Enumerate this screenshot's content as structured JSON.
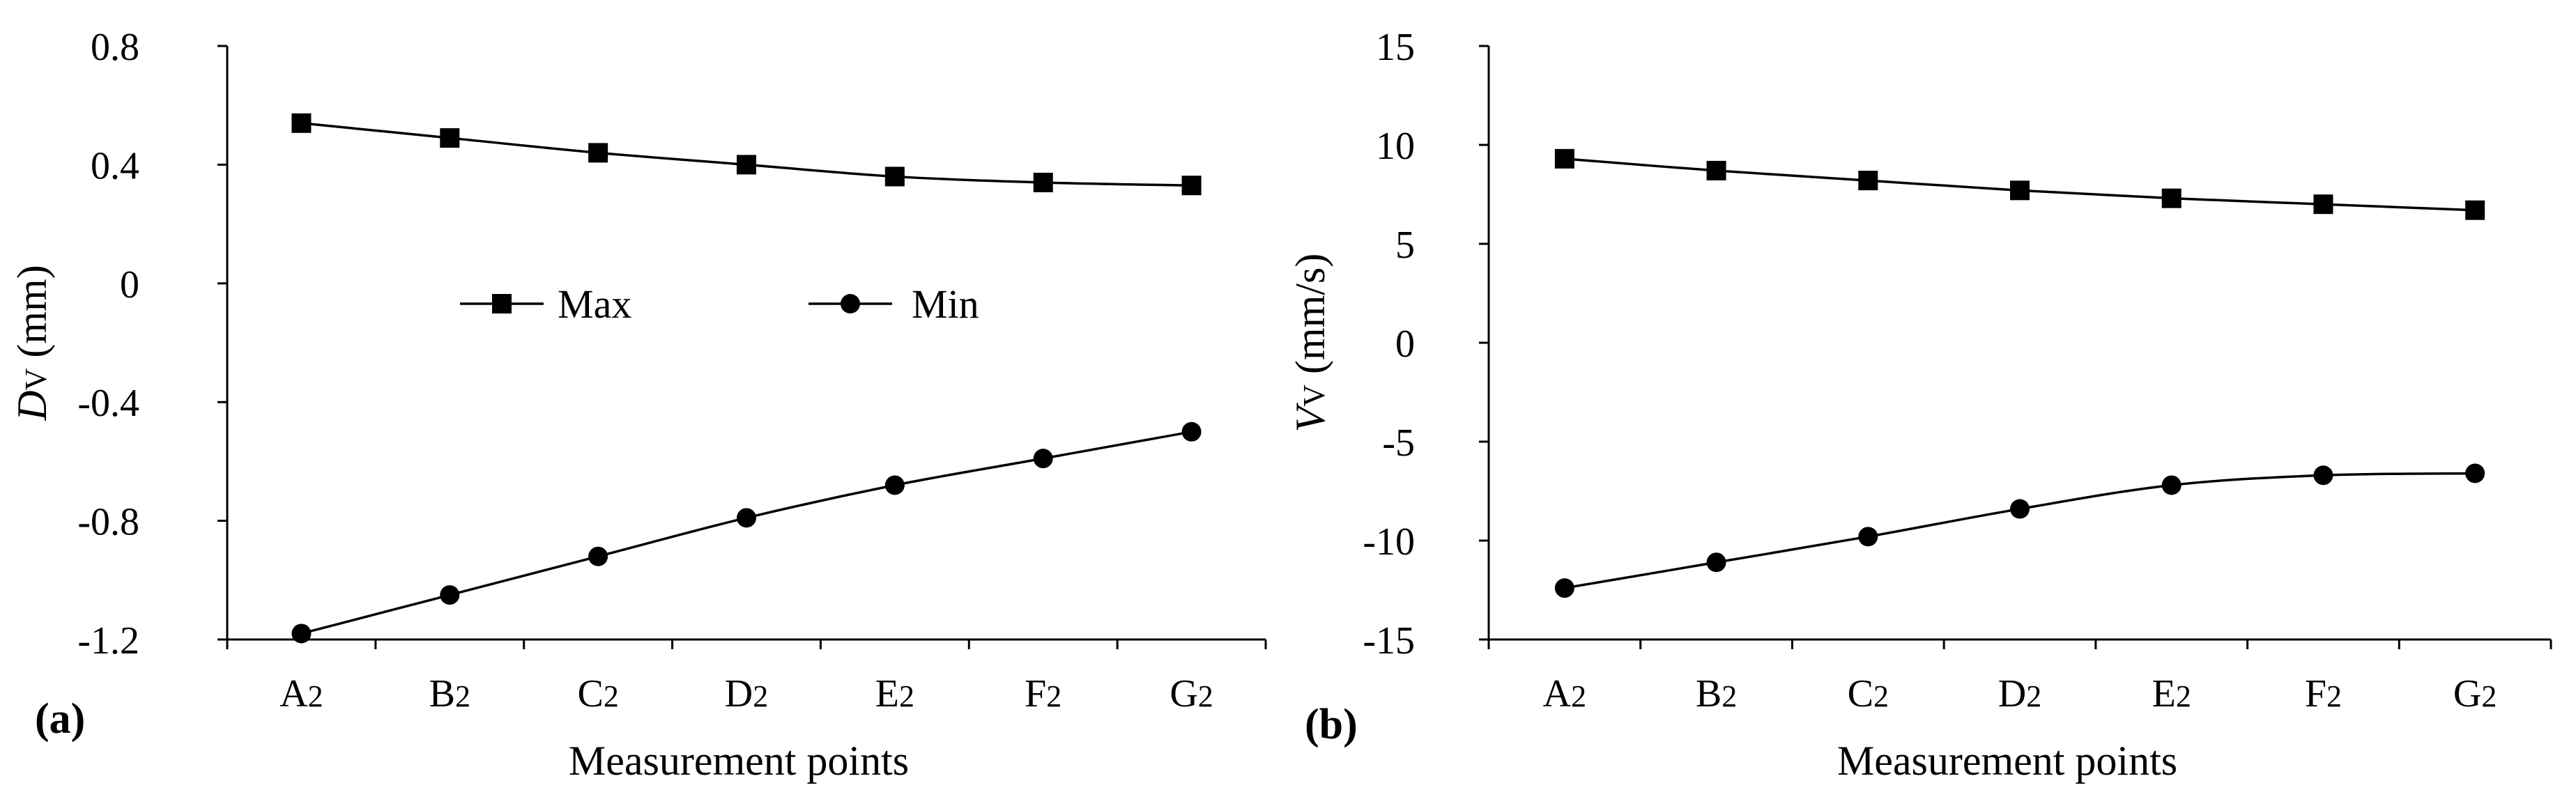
{
  "chart_data": [
    {
      "type": "line",
      "panel_label": "(a)",
      "categories": [
        "A",
        "B",
        "C",
        "D",
        "E",
        "F",
        "G"
      ],
      "category_subscript": "2",
      "xlabel": "Measurement points",
      "ylabel_symbol": "D",
      "ylabel_subscript": "V",
      "ylabel_unit": " (mm)",
      "ylim": [
        -1.2,
        0.8
      ],
      "yticks": [
        0.8,
        0.4,
        0,
        -0.4,
        -0.8,
        -1.2
      ],
      "ytick_labels": [
        "0.8",
        "0.4",
        "0",
        "-0.4",
        "-0.8",
        "-1.2"
      ],
      "legend": "inside-center",
      "series": [
        {
          "name": "Max",
          "marker": "square",
          "values": [
            0.54,
            0.49,
            0.44,
            0.4,
            0.36,
            0.34,
            0.33
          ]
        },
        {
          "name": "Min",
          "marker": "circle",
          "values": [
            -1.18,
            -1.05,
            -0.92,
            -0.79,
            -0.68,
            -0.59,
            -0.5
          ]
        }
      ]
    },
    {
      "type": "line",
      "panel_label": "(b)",
      "categories": [
        "A",
        "B",
        "C",
        "D",
        "E",
        "F",
        "G"
      ],
      "category_subscript": "2",
      "xlabel": "Measurement points",
      "ylabel_symbol": "V",
      "ylabel_subscript": "V",
      "ylabel_unit": " (mm/s)",
      "ylim": [
        -15,
        15
      ],
      "yticks": [
        15,
        10,
        5,
        0,
        -5,
        -10,
        -15
      ],
      "ytick_labels": [
        "15",
        "10",
        "5",
        "0",
        "-5",
        "-10",
        "-15"
      ],
      "legend": "none",
      "series": [
        {
          "name": "Max",
          "marker": "square",
          "values": [
            9.3,
            8.7,
            8.2,
            7.7,
            7.3,
            7.0,
            6.7
          ]
        },
        {
          "name": "Min",
          "marker": "circle",
          "values": [
            -12.4,
            -11.1,
            -9.8,
            -8.4,
            -7.2,
            -6.7,
            -6.6
          ]
        }
      ]
    }
  ]
}
